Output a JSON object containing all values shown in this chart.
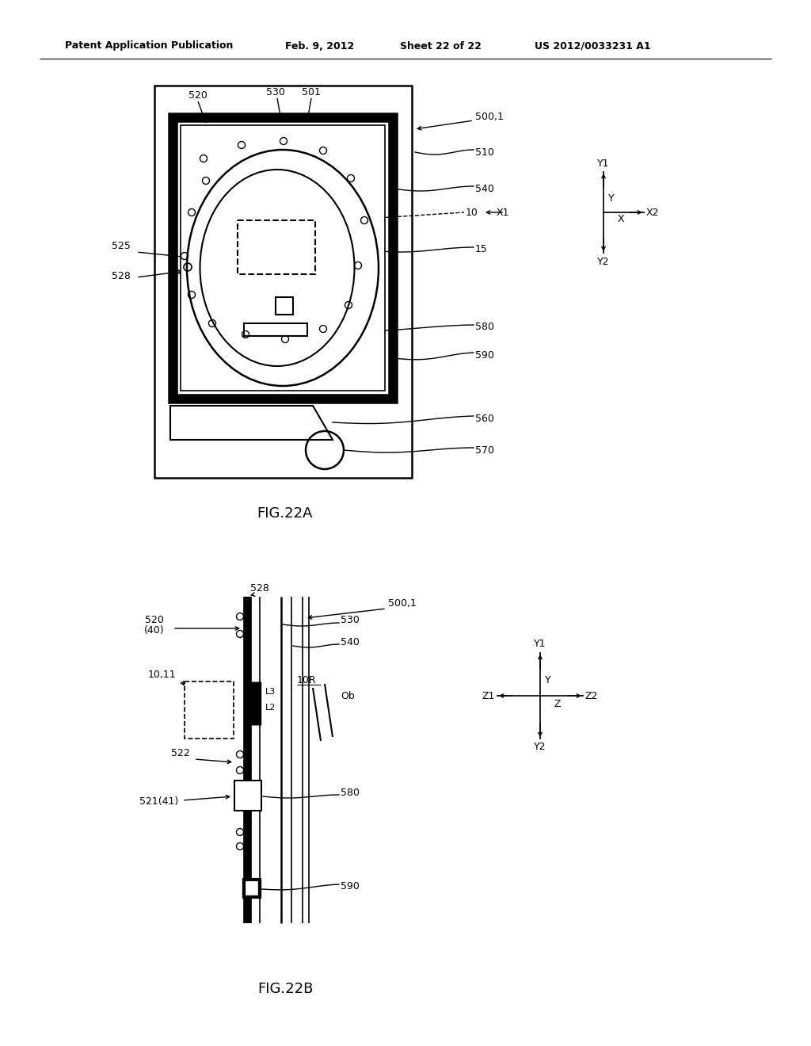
{
  "bg_color": "#ffffff",
  "line_color": "#000000",
  "header_text": "Patent Application Publication",
  "header_date": "Feb. 9, 2012",
  "header_sheet": "Sheet 22 of 22",
  "header_patent": "US 2012/0033231 A1",
  "fig_a_label": "FIG.22A",
  "fig_b_label": "FIG.22B"
}
